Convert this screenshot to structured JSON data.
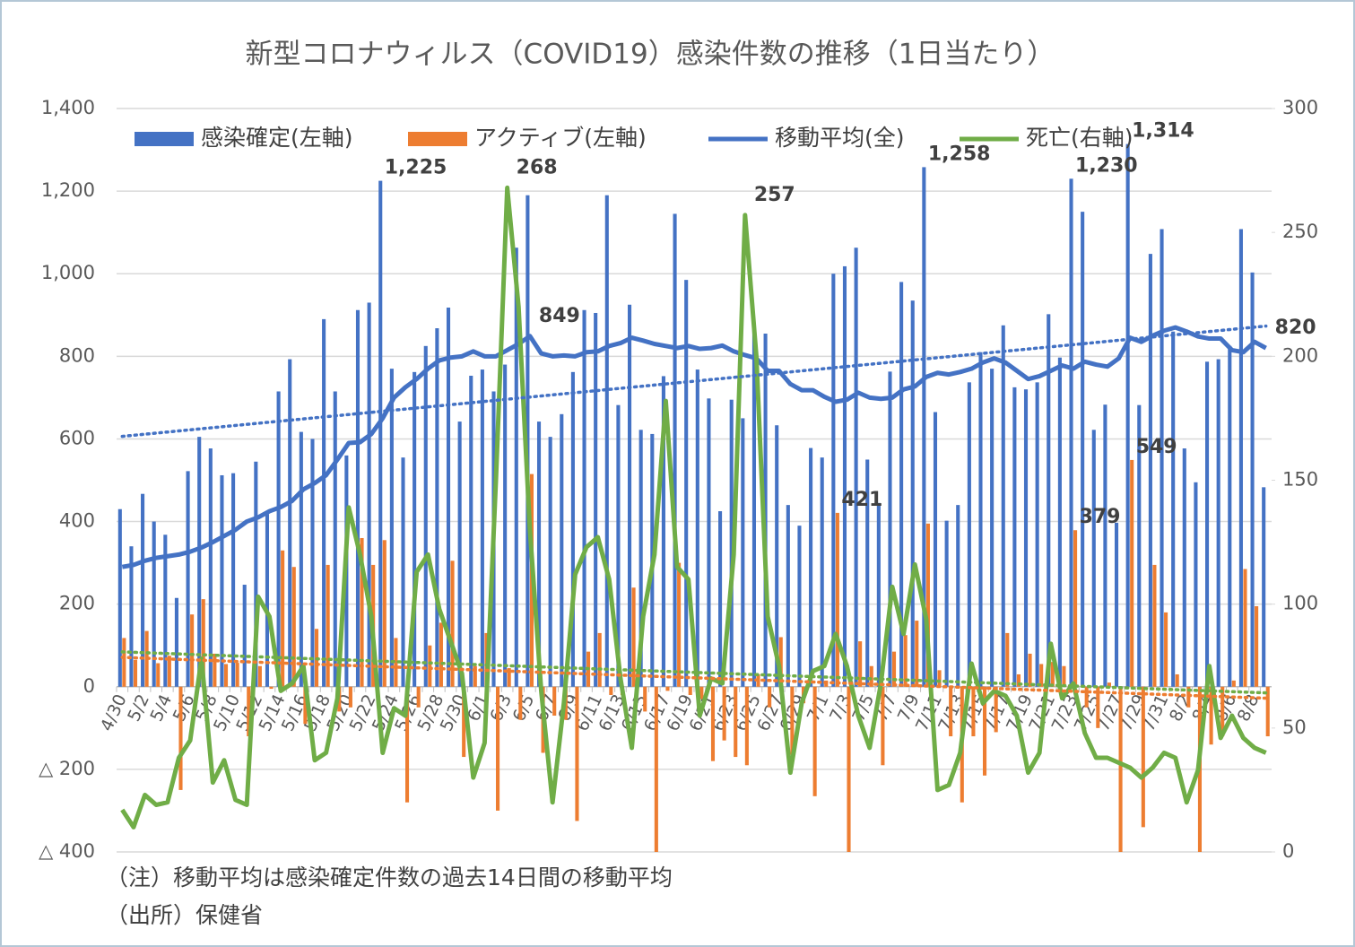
{
  "chart_data": {
    "type": "combo",
    "title": "新型コロナウィルス（COVID19）感染件数の推移（1日当たり）",
    "notes": [
      "（注）移動平均は感染確定件数の過去14日間の移動平均",
      "（出所）保健省"
    ],
    "categories": [
      "4/30",
      null,
      "5/2",
      null,
      "5/4",
      null,
      "5/6",
      null,
      "5/8",
      null,
      "5/10",
      null,
      "5/12",
      null,
      "5/14",
      null,
      "5/16",
      null,
      "5/18",
      null,
      "5/20",
      null,
      "5/22",
      null,
      "5/24",
      null,
      "5/26",
      null,
      "5/28",
      null,
      "5/30",
      null,
      "6/1",
      null,
      "6/3",
      null,
      "6/5",
      null,
      "6/7",
      null,
      "6/9",
      null,
      "6/11",
      null,
      "6/13",
      null,
      "6/15",
      null,
      "6/17",
      null,
      "6/19",
      null,
      "6/21",
      null,
      "6/23",
      null,
      "6/25",
      null,
      "6/27",
      null,
      "6/29",
      null,
      "7/1",
      null,
      "7/3",
      null,
      "7/5",
      null,
      "7/7",
      null,
      "7/9",
      null,
      "7/11",
      null,
      "7/13",
      null,
      "7/15",
      null,
      "7/17",
      null,
      "7/19",
      null,
      "7/21",
      null,
      "7/23",
      null,
      "7/25",
      null,
      "7/27",
      null,
      "7/29",
      null,
      "7/31",
      null,
      "8/2",
      null,
      "8/4",
      null,
      "8/6",
      null,
      "8/8",
      null
    ],
    "series": [
      {
        "name": "感染確定(左軸)",
        "kind": "bar",
        "color": "#4472c4",
        "trendline": true,
        "values": [
          430,
          340,
          467,
          400,
          368,
          215,
          522,
          605,
          577,
          512,
          517,
          247,
          545,
          418,
          715,
          793,
          617,
          600,
          890,
          715,
          560,
          912,
          930,
          1225,
          770,
          555,
          762,
          825,
          868,
          918,
          642,
          753,
          768,
          715,
          780,
          1063,
          1190,
          642,
          605,
          660,
          762,
          912,
          905,
          1190,
          682,
          925,
          622,
          612,
          752,
          1145,
          985,
          768,
          698,
          425,
          695,
          650,
          880,
          855,
          633,
          440,
          390,
          578,
          555,
          1000,
          1018,
          1063,
          550,
          445,
          763,
          980,
          935,
          1258,
          665,
          402,
          440,
          737,
          810,
          770,
          875,
          725,
          720,
          737,
          902,
          797,
          1230,
          1150,
          622,
          683,
          397,
          1314,
          682,
          1048,
          1108,
          860,
          577,
          495,
          787,
          793,
          825,
          1108,
          1003,
          483
        ],
        "value_labels": [
          null,
          null,
          null,
          null,
          null,
          null,
          null,
          null,
          null,
          null,
          null,
          null,
          null,
          null,
          null,
          null,
          null,
          null,
          null,
          null,
          null,
          null,
          null,
          "1,225",
          null,
          null,
          null,
          null,
          null,
          null,
          null,
          null,
          null,
          null,
          null,
          null,
          null,
          null,
          null,
          null,
          null,
          null,
          null,
          null,
          null,
          null,
          null,
          null,
          null,
          null,
          null,
          null,
          null,
          null,
          null,
          null,
          null,
          null,
          null,
          null,
          null,
          null,
          null,
          null,
          null,
          null,
          null,
          null,
          null,
          null,
          null,
          "1,258",
          null,
          null,
          null,
          null,
          null,
          null,
          null,
          null,
          null,
          null,
          null,
          null,
          "1,230",
          null,
          null,
          null,
          null,
          "1,314",
          null,
          null,
          null,
          null,
          null,
          null,
          null,
          null,
          null,
          null,
          null,
          null
        ]
      },
      {
        "name": "アクティブ(左軸)",
        "kind": "bar",
        "color": "#ed7d31",
        "trendline": true,
        "values": [
          118,
          65,
          135,
          57,
          75,
          -250,
          175,
          212,
          80,
          55,
          58,
          -120,
          50,
          -5,
          330,
          290,
          -90,
          140,
          295,
          -60,
          -50,
          360,
          295,
          355,
          118,
          -280,
          -50,
          100,
          155,
          305,
          -170,
          50,
          130,
          -300,
          45,
          -80,
          515,
          -160,
          -70,
          -80,
          -325,
          85,
          130,
          -20,
          -20,
          240,
          -60,
          -400,
          -10,
          300,
          -20,
          -30,
          -180,
          -130,
          -170,
          -190,
          30,
          -50,
          120,
          -165,
          -40,
          -265,
          15,
          421,
          -400,
          110,
          50,
          -190,
          85,
          125,
          160,
          395,
          40,
          -120,
          -280,
          -120,
          -215,
          -110,
          130,
          30,
          80,
          55,
          60,
          50,
          379,
          -50,
          -100,
          10,
          -400,
          549,
          -340,
          295,
          180,
          30,
          -50,
          -400,
          -140,
          -120,
          15,
          285,
          195,
          -120
        ],
        "value_labels": [
          null,
          null,
          null,
          null,
          null,
          null,
          null,
          null,
          null,
          null,
          null,
          null,
          null,
          null,
          null,
          null,
          null,
          null,
          null,
          null,
          null,
          null,
          null,
          null,
          null,
          null,
          null,
          null,
          null,
          null,
          null,
          null,
          null,
          null,
          null,
          null,
          null,
          null,
          null,
          null,
          null,
          null,
          null,
          null,
          null,
          null,
          null,
          null,
          null,
          null,
          null,
          null,
          null,
          null,
          null,
          null,
          null,
          null,
          null,
          null,
          null,
          null,
          null,
          "421",
          null,
          null,
          null,
          null,
          null,
          null,
          null,
          null,
          null,
          null,
          null,
          null,
          null,
          null,
          null,
          null,
          null,
          null,
          null,
          null,
          "379",
          null,
          null,
          null,
          null,
          "549",
          null,
          null,
          null,
          null,
          null,
          null,
          null,
          null,
          null,
          null,
          null,
          null
        ]
      },
      {
        "name": "移動平均(全)",
        "kind": "line",
        "color": "#4472c4",
        "values": [
          290,
          295,
          305,
          312,
          316,
          320,
          327,
          337,
          350,
          365,
          380,
          400,
          410,
          425,
          435,
          450,
          478,
          493,
          512,
          550,
          590,
          592,
          612,
          650,
          700,
          725,
          745,
          770,
          790,
          797,
          800,
          812,
          800,
          800,
          815,
          830,
          849,
          807,
          800,
          802,
          800,
          810,
          812,
          825,
          832,
          845,
          838,
          830,
          825,
          820,
          825,
          818,
          820,
          826,
          812,
          803,
          795,
          765,
          765,
          733,
          718,
          718,
          702,
          690,
          695,
          712,
          700,
          697,
          700,
          720,
          727,
          750,
          760,
          756,
          762,
          770,
          785,
          795,
          785,
          765,
          745,
          752,
          765,
          778,
          770,
          787,
          780,
          775,
          795,
          845,
          835,
          850,
          862,
          870,
          860,
          848,
          843,
          843,
          815,
          810,
          835,
          820
        ],
        "value_labels": [
          null,
          null,
          null,
          null,
          null,
          null,
          null,
          null,
          null,
          null,
          null,
          null,
          null,
          null,
          null,
          null,
          null,
          null,
          null,
          null,
          null,
          null,
          null,
          null,
          null,
          null,
          null,
          null,
          null,
          null,
          null,
          null,
          null,
          null,
          null,
          null,
          "849",
          null,
          null,
          null,
          null,
          null,
          null,
          null,
          null,
          null,
          null,
          null,
          null,
          null,
          null,
          null,
          null,
          null,
          null,
          null,
          null,
          null,
          null,
          null,
          null,
          null,
          null,
          null,
          null,
          null,
          null,
          null,
          null,
          null,
          null,
          null,
          null,
          null,
          null,
          null,
          null,
          null,
          null,
          null,
          null,
          null,
          null,
          null,
          null,
          null,
          null,
          null,
          null,
          null,
          null,
          null,
          null,
          null,
          null,
          null,
          null,
          null,
          null,
          null,
          null,
          "820"
        ]
      },
      {
        "name": "死亡(右軸)",
        "kind": "line",
        "axis": "y2",
        "color": "#70ad47",
        "trendline": true,
        "values": [
          17,
          10,
          23,
          19,
          20,
          38,
          45,
          78,
          28,
          37,
          21,
          19,
          103,
          95,
          65,
          68,
          75,
          37,
          40,
          62,
          139,
          120,
          95,
          40,
          58,
          55,
          113,
          120,
          98,
          85,
          72,
          30,
          44,
          150,
          268,
          220,
          130,
          65,
          20,
          60,
          112,
          123,
          127,
          110,
          70,
          42,
          95,
          120,
          182,
          115,
          110,
          55,
          70,
          68,
          120,
          257,
          200,
          95,
          75,
          32,
          60,
          73,
          75,
          88,
          75,
          55,
          42,
          68,
          107,
          88,
          116,
          94,
          25,
          27,
          40,
          76,
          60,
          65,
          63,
          55,
          32,
          40,
          84,
          62,
          68,
          48,
          38,
          38,
          36,
          34,
          30,
          34,
          40,
          38,
          20,
          33,
          75,
          46,
          55,
          46,
          42,
          40
        ],
        "value_labels": [
          null,
          null,
          null,
          null,
          null,
          null,
          null,
          null,
          null,
          null,
          null,
          null,
          null,
          null,
          null,
          null,
          null,
          null,
          null,
          null,
          null,
          null,
          null,
          null,
          null,
          null,
          null,
          null,
          null,
          null,
          null,
          null,
          null,
          null,
          "268",
          null,
          null,
          null,
          null,
          null,
          null,
          null,
          null,
          null,
          null,
          null,
          null,
          null,
          null,
          null,
          null,
          null,
          null,
          null,
          null,
          "257",
          null,
          null,
          null,
          null,
          null,
          null,
          null,
          null,
          null,
          null,
          null,
          null,
          null,
          null,
          null,
          null,
          null,
          null,
          null,
          null,
          null,
          null,
          null,
          null,
          null,
          null,
          null,
          null,
          null,
          null,
          null,
          null,
          null,
          null,
          null,
          null,
          null,
          null,
          null,
          null,
          null,
          null,
          null,
          null,
          null,
          null
        ]
      }
    ],
    "ylim": [
      -400,
      1400
    ],
    "yticks": [
      {
        "value": -400,
        "label": "△ 400"
      },
      {
        "value": -200,
        "label": "△ 200"
      },
      0,
      200,
      400,
      600,
      800,
      {
        "value": 1000,
        "label": "1,000"
      },
      {
        "value": 1200,
        "label": "1,200"
      },
      {
        "value": 1400,
        "label": "1,400"
      }
    ],
    "y2lim": [
      0,
      300
    ],
    "y2ticks": [
      0,
      50,
      100,
      150,
      200,
      250,
      300
    ],
    "grid": true,
    "legend": "top"
  }
}
